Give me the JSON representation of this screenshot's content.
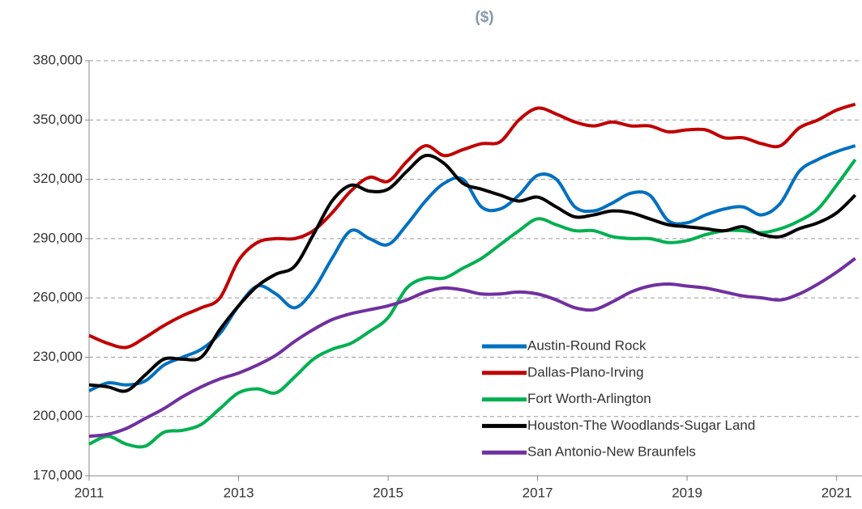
{
  "chart_data": {
    "type": "line",
    "title": "($)",
    "x": [
      2011,
      2011.25,
      2011.5,
      2011.75,
      2012,
      2012.25,
      2012.5,
      2012.75,
      2013,
      2013.25,
      2013.5,
      2013.75,
      2014,
      2014.25,
      2014.5,
      2014.75,
      2015,
      2015.25,
      2015.5,
      2015.75,
      2016,
      2016.25,
      2016.5,
      2016.75,
      2017,
      2017.25,
      2017.5,
      2017.75,
      2018,
      2018.25,
      2018.5,
      2018.75,
      2019,
      2019.25,
      2019.5,
      2019.75,
      2020,
      2020.25,
      2020.5,
      2020.75,
      2021,
      2021.25
    ],
    "series": [
      {
        "name": "Austin-Round Rock",
        "color": "#0070c0",
        "values": [
          213000,
          217000,
          216000,
          218000,
          226000,
          230000,
          234000,
          242000,
          256000,
          266000,
          262000,
          255000,
          264000,
          280000,
          294000,
          290000,
          287000,
          297000,
          309000,
          318000,
          320000,
          306000,
          305000,
          312000,
          322000,
          320000,
          306000,
          304000,
          308000,
          313000,
          312000,
          299000,
          298000,
          302000,
          305000,
          306000,
          302000,
          308000,
          324000,
          330000,
          334000,
          337000
        ]
      },
      {
        "name": "Dallas-Plano-Irving",
        "color": "#c00000",
        "values": [
          241000,
          237000,
          235000,
          240000,
          246000,
          251000,
          255000,
          260000,
          279000,
          288000,
          290000,
          290000,
          294000,
          303000,
          314000,
          321000,
          319000,
          329000,
          337000,
          332000,
          335000,
          338000,
          339000,
          350000,
          356000,
          353000,
          349000,
          347000,
          349000,
          347000,
          347000,
          344000,
          345000,
          345000,
          341000,
          341000,
          338000,
          337000,
          346000,
          350000,
          355000,
          358000
        ]
      },
      {
        "name": "Fort Worth-Arlington",
        "color": "#00b050",
        "values": [
          186000,
          190000,
          186000,
          185000,
          192000,
          193000,
          196000,
          204000,
          212000,
          214000,
          212000,
          220000,
          229000,
          234000,
          237000,
          243000,
          250000,
          265000,
          270000,
          270000,
          275000,
          280000,
          287000,
          294000,
          300000,
          297000,
          294000,
          294000,
          291000,
          290000,
          290000,
          288000,
          289000,
          292000,
          294000,
          294000,
          293000,
          295000,
          299000,
          305000,
          317000,
          330000
        ]
      },
      {
        "name": "Houston-The Woodlands-Sugar Land",
        "color": "#000000",
        "values": [
          216000,
          215000,
          213000,
          221000,
          229000,
          229000,
          230000,
          244000,
          256000,
          266000,
          272000,
          276000,
          292000,
          309000,
          317000,
          314000,
          315000,
          324000,
          332000,
          328000,
          318000,
          315000,
          312000,
          309000,
          311000,
          306000,
          301000,
          302000,
          304000,
          303000,
          300000,
          297000,
          296000,
          295000,
          294000,
          296000,
          292000,
          291000,
          295000,
          298000,
          303000,
          312000
        ]
      },
      {
        "name": "San Antonio-New Braunfels",
        "color": "#7030a0",
        "values": [
          190000,
          191000,
          194000,
          199000,
          204000,
          210000,
          215000,
          219000,
          222000,
          226000,
          231000,
          238000,
          244000,
          249000,
          252000,
          254000,
          256000,
          259000,
          263000,
          265000,
          264000,
          262000,
          262000,
          263000,
          262000,
          259000,
          255000,
          254000,
          258000,
          263000,
          266000,
          267000,
          266000,
          265000,
          263000,
          261000,
          260000,
          259000,
          262000,
          267000,
          273000,
          280000
        ]
      }
    ],
    "xlim": [
      2011,
      2021.34
    ],
    "xticks": [
      2011,
      2013,
      2015,
      2017,
      2019,
      2021
    ],
    "ylim": [
      170000,
      380000
    ],
    "yticks": [
      {
        "value": 170000,
        "label": "170,000"
      },
      {
        "value": 200000,
        "label": "200,000"
      },
      {
        "value": 230000,
        "label": "230,000"
      },
      {
        "value": 260000,
        "label": "260,000"
      },
      {
        "value": 290000,
        "label": "290,000"
      },
      {
        "value": 320000,
        "label": "320,000"
      },
      {
        "value": 350000,
        "label": "350,000"
      },
      {
        "value": 380000,
        "label": "380,000"
      }
    ],
    "grid": true,
    "legend": "lower right"
  }
}
